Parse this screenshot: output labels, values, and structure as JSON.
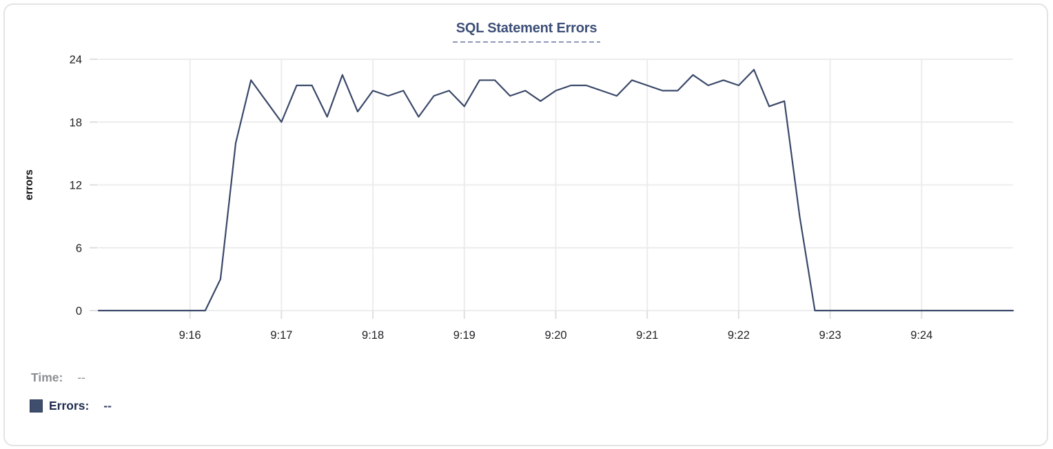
{
  "readout": {
    "time_label": "Time:",
    "time_value": "--",
    "errors_label": "Errors:",
    "errors_value": "--"
  },
  "colors": {
    "line": "#394768",
    "title": "#3d4f78",
    "title_underline": "#8d97b5",
    "swatch": "#3f4e6c",
    "time_text": "#8b8e93",
    "errors_text": "#1d2b4e",
    "errors_value": "#354262",
    "axis_text": "#202124"
  },
  "chart_data": {
    "type": "line",
    "title": "SQL Statement Errors",
    "xlabel": "",
    "ylabel": "errors",
    "series_name": "Errors",
    "grid": true,
    "legend_position": "none",
    "ylim": [
      0,
      24
    ],
    "yticks": [
      0,
      6,
      12,
      18,
      24
    ],
    "xtick_labels": [
      "9:16",
      "9:17",
      "9:18",
      "9:19",
      "9:20",
      "9:21",
      "9:22",
      "9:23",
      "9:24"
    ],
    "x": [
      "9:15:00",
      "9:15:10",
      "9:15:20",
      "9:15:30",
      "9:15:40",
      "9:15:50",
      "9:16:00",
      "9:16:10",
      "9:16:20",
      "9:16:30",
      "9:16:40",
      "9:16:50",
      "9:17:00",
      "9:17:10",
      "9:17:20",
      "9:17:30",
      "9:17:40",
      "9:17:50",
      "9:18:00",
      "9:18:10",
      "9:18:20",
      "9:18:30",
      "9:18:40",
      "9:18:50",
      "9:19:00",
      "9:19:10",
      "9:19:20",
      "9:19:30",
      "9:19:40",
      "9:19:50",
      "9:20:00",
      "9:20:10",
      "9:20:20",
      "9:20:30",
      "9:20:40",
      "9:20:50",
      "9:21:00",
      "9:21:10",
      "9:21:20",
      "9:21:30",
      "9:21:40",
      "9:21:50",
      "9:22:00",
      "9:22:10",
      "9:22:20",
      "9:22:30",
      "9:22:40",
      "9:22:50",
      "9:23:00",
      "9:23:10",
      "9:23:20",
      "9:23:30",
      "9:23:40",
      "9:23:50",
      "9:24:00",
      "9:24:10",
      "9:24:20",
      "9:24:30",
      "9:24:40",
      "9:24:50",
      "9:25:00"
    ],
    "values": [
      0,
      0,
      0,
      0,
      0,
      0,
      0,
      0,
      3,
      16,
      22,
      20,
      18,
      21.5,
      21.5,
      18.5,
      22.5,
      19,
      21,
      20.5,
      21,
      18.5,
      20.5,
      21,
      19.5,
      22,
      22,
      20.5,
      21,
      20,
      21,
      21.5,
      21.5,
      21,
      20.5,
      22,
      21.5,
      21,
      21,
      22.5,
      21.5,
      22,
      21.5,
      23,
      19.5,
      20,
      9,
      0,
      0,
      0,
      0,
      0,
      0,
      0,
      0,
      0,
      0,
      0,
      0,
      0,
      0
    ]
  }
}
